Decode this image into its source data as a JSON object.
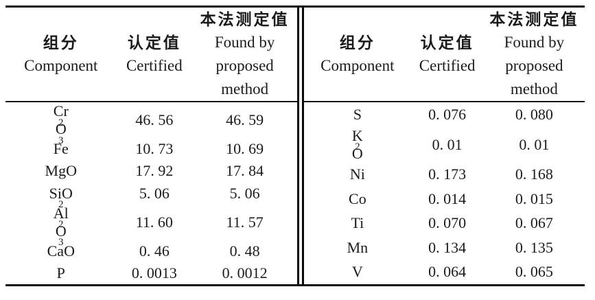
{
  "colors": {
    "background": "#ffffff",
    "text": "#1b1b1b",
    "rule": "#0a0a0a"
  },
  "table": {
    "header": {
      "component_zh": "组分",
      "component_en": "Component",
      "certified_zh": "认定值",
      "certified_en": "Certified",
      "found_zh": "本法测定值",
      "found_en_line1": "Found by",
      "found_en_line2": "proposed",
      "found_en_line3": "method"
    },
    "left": {
      "rows": [
        {
          "component": "Cr₂ O₃",
          "certified": "46. 56",
          "found": "46. 59"
        },
        {
          "component": "Fe",
          "certified": "10. 73",
          "found": "10. 69"
        },
        {
          "component": "MgO",
          "certified": "17. 92",
          "found": "17. 84"
        },
        {
          "component": "SiO₂",
          "certified": "5. 06",
          "found": "5. 06"
        },
        {
          "component": "Al₂ O₃",
          "certified": "11. 60",
          "found": "11. 57"
        },
        {
          "component": "CaO",
          "certified": "0. 46",
          "found": "0. 48"
        },
        {
          "component": "P",
          "certified": "0. 0013",
          "found": "0. 0012"
        }
      ]
    },
    "right": {
      "rows": [
        {
          "component": "S",
          "certified": "0. 076",
          "found": "0. 080"
        },
        {
          "component": "K₂ O",
          "certified": "0. 01",
          "found": "0. 01"
        },
        {
          "component": "Ni",
          "certified": "0. 173",
          "found": "0. 168"
        },
        {
          "component": "Co",
          "certified": "0. 014",
          "found": "0. 015"
        },
        {
          "component": "Ti",
          "certified": "0. 070",
          "found": "0. 067"
        },
        {
          "component": "Mn",
          "certified": "0. 134",
          "found": "0. 135"
        },
        {
          "component": "V",
          "certified": "0. 064",
          "found": "0. 065"
        }
      ]
    }
  }
}
